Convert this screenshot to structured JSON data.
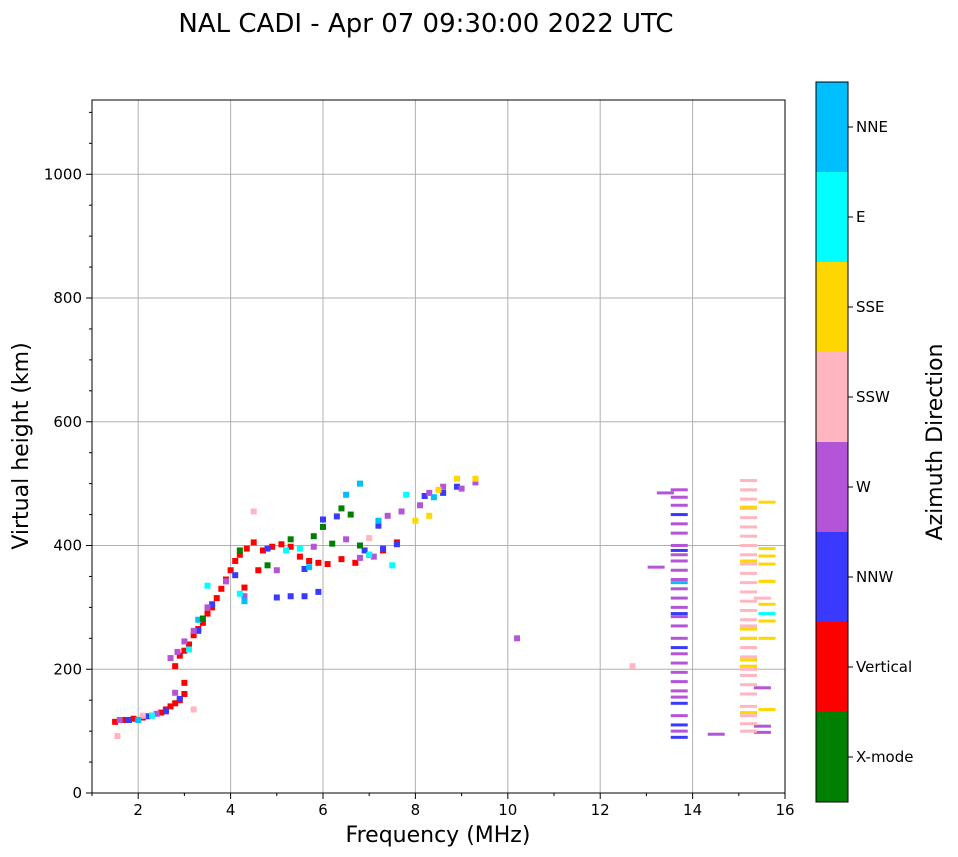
{
  "chart_data": {
    "type": "scatter",
    "title": "NAL CADI - Apr 07 09:30:00 2022 UTC",
    "xlabel": "Frequency (MHz)",
    "ylabel": "Virtual height (km)",
    "xlim": [
      1.0,
      16.0
    ],
    "ylim": [
      0,
      1120
    ],
    "xticks": [
      2,
      4,
      6,
      8,
      10,
      12,
      14,
      16
    ],
    "yticks": [
      0,
      200,
      400,
      600,
      800,
      1000
    ],
    "grid": true,
    "colorbar": {
      "label": "Azimuth Direction",
      "categories": [
        {
          "name": "X-mode",
          "color": "#008000"
        },
        {
          "name": "Vertical",
          "color": "#ff0000"
        },
        {
          "name": "NNW",
          "color": "#3a3aff"
        },
        {
          "name": "W",
          "color": "#b455d8"
        },
        {
          "name": "SSW",
          "color": "#ffb6c1"
        },
        {
          "name": "SSE",
          "color": "#ffd700"
        },
        {
          "name": "E",
          "color": "#00ffff"
        },
        {
          "name": "NNE",
          "color": "#00bfff"
        }
      ]
    },
    "series": [
      {
        "name": "Vertical",
        "points": [
          [
            1.5,
            115
          ],
          [
            1.7,
            118
          ],
          [
            1.9,
            120
          ],
          [
            2.1,
            122
          ],
          [
            2.3,
            125
          ],
          [
            2.5,
            130
          ],
          [
            2.6,
            135
          ],
          [
            2.7,
            140
          ],
          [
            2.8,
            145
          ],
          [
            2.9,
            150
          ],
          [
            3.0,
            160
          ],
          [
            3.0,
            178
          ],
          [
            2.8,
            205
          ],
          [
            2.9,
            222
          ],
          [
            3.0,
            230
          ],
          [
            3.1,
            240
          ],
          [
            3.2,
            255
          ],
          [
            3.3,
            265
          ],
          [
            3.4,
            275
          ],
          [
            3.5,
            290
          ],
          [
            3.6,
            300
          ],
          [
            3.7,
            315
          ],
          [
            3.8,
            330
          ],
          [
            3.9,
            345
          ],
          [
            4.0,
            360
          ],
          [
            4.1,
            375
          ],
          [
            4.2,
            385
          ],
          [
            4.35,
            395
          ],
          [
            4.5,
            405
          ],
          [
            4.7,
            392
          ],
          [
            4.9,
            398
          ],
          [
            5.1,
            402
          ],
          [
            5.3,
            398
          ],
          [
            5.5,
            382
          ],
          [
            5.7,
            375
          ],
          [
            5.9,
            372
          ],
          [
            6.1,
            370
          ],
          [
            6.4,
            378
          ],
          [
            6.7,
            372
          ],
          [
            7.0,
            385
          ],
          [
            7.3,
            392
          ],
          [
            7.6,
            405
          ],
          [
            4.6,
            360
          ],
          [
            4.3,
            332
          ]
        ]
      },
      {
        "name": "NNW",
        "points": [
          [
            1.8,
            118
          ],
          [
            2.2,
            124
          ],
          [
            2.6,
            132
          ],
          [
            2.9,
            152
          ],
          [
            3.3,
            262
          ],
          [
            3.6,
            305
          ],
          [
            4.1,
            352
          ],
          [
            4.8,
            395
          ],
          [
            5.0,
            316
          ],
          [
            5.3,
            318
          ],
          [
            5.6,
            318
          ],
          [
            5.9,
            325
          ],
          [
            5.6,
            362
          ],
          [
            6.0,
            442
          ],
          [
            6.3,
            447
          ],
          [
            6.9,
            392
          ],
          [
            7.2,
            432
          ],
          [
            7.3,
            395
          ],
          [
            7.6,
            402
          ],
          [
            8.2,
            480
          ],
          [
            8.6,
            485
          ],
          [
            8.9,
            495
          ],
          [
            13.7,
            90
          ],
          [
            13.7,
            110
          ],
          [
            13.7,
            145
          ],
          [
            13.7,
            235
          ],
          [
            13.7,
            290
          ],
          [
            13.7,
            392
          ],
          [
            13.7,
            450
          ]
        ]
      },
      {
        "name": "W",
        "points": [
          [
            1.6,
            118
          ],
          [
            2.4,
            128
          ],
          [
            2.8,
            162
          ],
          [
            2.7,
            218
          ],
          [
            2.85,
            228
          ],
          [
            3.0,
            245
          ],
          [
            3.2,
            262
          ],
          [
            3.5,
            300
          ],
          [
            3.9,
            342
          ],
          [
            4.3,
            318
          ],
          [
            5.0,
            360
          ],
          [
            5.8,
            398
          ],
          [
            6.5,
            410
          ],
          [
            6.8,
            380
          ],
          [
            7.1,
            382
          ],
          [
            7.4,
            448
          ],
          [
            7.7,
            455
          ],
          [
            8.1,
            465
          ],
          [
            8.3,
            485
          ],
          [
            8.6,
            495
          ],
          [
            9.0,
            492
          ],
          [
            9.3,
            502
          ],
          [
            10.2,
            250
          ],
          [
            13.2,
            365
          ],
          [
            13.4,
            485
          ],
          [
            14.5,
            95
          ],
          [
            13.7,
            100
          ],
          [
            13.7,
            125
          ],
          [
            13.7,
            155
          ],
          [
            13.7,
            165
          ],
          [
            13.7,
            180
          ],
          [
            13.7,
            195
          ],
          [
            13.7,
            210
          ],
          [
            13.7,
            225
          ],
          [
            13.7,
            250
          ],
          [
            13.7,
            270
          ],
          [
            13.7,
            285
          ],
          [
            13.7,
            300
          ],
          [
            13.7,
            315
          ],
          [
            13.7,
            330
          ],
          [
            13.7,
            345
          ],
          [
            13.7,
            360
          ],
          [
            13.7,
            375
          ],
          [
            13.7,
            385
          ],
          [
            13.7,
            400
          ],
          [
            13.7,
            420
          ],
          [
            13.7,
            435
          ],
          [
            13.7,
            465
          ],
          [
            13.7,
            478
          ],
          [
            13.7,
            490
          ],
          [
            15.5,
            98
          ],
          [
            15.5,
            108
          ],
          [
            15.5,
            170
          ]
        ]
      },
      {
        "name": "SSW",
        "points": [
          [
            1.55,
            92
          ],
          [
            2.1,
            125
          ],
          [
            3.2,
            135
          ],
          [
            4.5,
            455
          ],
          [
            7.0,
            412
          ],
          [
            12.7,
            205
          ],
          [
            15.5,
            315
          ],
          [
            15.2,
            100
          ],
          [
            15.2,
            112
          ],
          [
            15.2,
            125
          ],
          [
            15.2,
            140
          ],
          [
            15.2,
            160
          ],
          [
            15.2,
            175
          ],
          [
            15.2,
            190
          ],
          [
            15.2,
            200
          ],
          [
            15.2,
            220
          ],
          [
            15.2,
            235
          ],
          [
            15.2,
            250
          ],
          [
            15.2,
            270
          ],
          [
            15.2,
            280
          ],
          [
            15.2,
            295
          ],
          [
            15.2,
            310
          ],
          [
            15.2,
            325
          ],
          [
            15.2,
            340
          ],
          [
            15.2,
            355
          ],
          [
            15.2,
            370
          ],
          [
            15.2,
            385
          ],
          [
            15.2,
            400
          ],
          [
            15.2,
            415
          ],
          [
            15.2,
            430
          ],
          [
            15.2,
            445
          ],
          [
            15.2,
            460
          ],
          [
            15.2,
            475
          ],
          [
            15.2,
            490
          ],
          [
            15.2,
            505
          ]
        ]
      },
      {
        "name": "SSE",
        "points": [
          [
            8.0,
            440
          ],
          [
            8.3,
            448
          ],
          [
            8.5,
            490
          ],
          [
            8.9,
            508
          ],
          [
            9.3,
            508
          ],
          [
            15.2,
            130
          ],
          [
            15.2,
            205
          ],
          [
            15.2,
            215
          ],
          [
            15.2,
            250
          ],
          [
            15.2,
            265
          ],
          [
            15.2,
            375
          ],
          [
            15.2,
            462
          ],
          [
            15.6,
            135
          ],
          [
            15.6,
            250
          ],
          [
            15.6,
            278
          ],
          [
            15.6,
            305
          ],
          [
            15.6,
            342
          ],
          [
            15.6,
            370
          ],
          [
            15.6,
            383
          ],
          [
            15.6,
            395
          ],
          [
            15.6,
            470
          ]
        ]
      },
      {
        "name": "E",
        "points": [
          [
            2.3,
            125
          ],
          [
            3.1,
            232
          ],
          [
            3.5,
            335
          ],
          [
            4.2,
            322
          ],
          [
            5.2,
            392
          ],
          [
            5.5,
            395
          ],
          [
            7.0,
            385
          ],
          [
            7.5,
            368
          ],
          [
            7.8,
            482
          ],
          [
            15.6,
            290
          ]
        ]
      },
      {
        "name": "NNE",
        "points": [
          [
            2.0,
            118
          ],
          [
            3.3,
            280
          ],
          [
            4.3,
            310
          ],
          [
            5.7,
            365
          ],
          [
            6.5,
            482
          ],
          [
            6.8,
            500
          ],
          [
            7.2,
            440
          ],
          [
            8.4,
            478
          ],
          [
            13.7,
            340
          ]
        ]
      },
      {
        "name": "X-mode",
        "points": [
          [
            3.4,
            282
          ],
          [
            4.2,
            392
          ],
          [
            4.8,
            368
          ],
          [
            5.3,
            410
          ],
          [
            5.8,
            415
          ],
          [
            6.0,
            430
          ],
          [
            6.2,
            403
          ],
          [
            6.4,
            460
          ],
          [
            6.6,
            450
          ],
          [
            6.8,
            400
          ]
        ]
      }
    ]
  }
}
